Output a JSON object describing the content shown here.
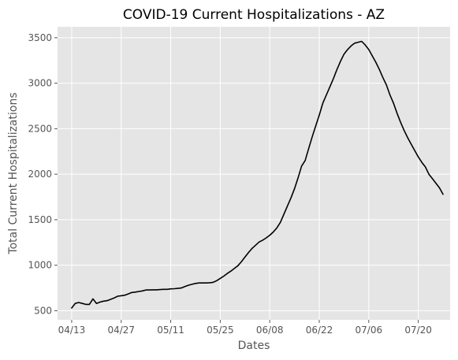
{
  "chart_data": {
    "type": "line",
    "title": "COVID-19 Current Hospitalizations - AZ",
    "xlabel": "Dates",
    "ylabel": "Total Current Hospitalizations",
    "x_ticks": [
      "04/13",
      "04/27",
      "05/11",
      "05/25",
      "06/08",
      "06/22",
      "07/06",
      "07/20"
    ],
    "y_ticks": [
      500,
      1000,
      1500,
      2000,
      2500,
      3000,
      3500
    ],
    "xlim": [
      -4,
      107
    ],
    "ylim": [
      400,
      3620
    ],
    "grid": true,
    "colors": {
      "plot_bg": "#e5e5e5",
      "grid": "#ffffff",
      "line": "#000000",
      "text": "#555555"
    },
    "series": [
      {
        "color": "#000000",
        "x": [
          0,
          1,
          2,
          3,
          4,
          5,
          6,
          7,
          8,
          9,
          10,
          11,
          12,
          13,
          14,
          15,
          16,
          17,
          18,
          19,
          20,
          21,
          22,
          23,
          24,
          25,
          26,
          27,
          28,
          29,
          30,
          31,
          32,
          33,
          34,
          35,
          36,
          37,
          38,
          39,
          40,
          41,
          42,
          43,
          44,
          45,
          46,
          47,
          48,
          49,
          50,
          51,
          52,
          53,
          54,
          55,
          56,
          57,
          58,
          59,
          60,
          61,
          62,
          63,
          64,
          65,
          66,
          67,
          68,
          69,
          70,
          71,
          72,
          73,
          74,
          75,
          76,
          77,
          78,
          79,
          80,
          81,
          82,
          83,
          84,
          85,
          86,
          87,
          88,
          89,
          90,
          91,
          92,
          93,
          94,
          95,
          96,
          97,
          98,
          99,
          100,
          101,
          102,
          103,
          104,
          105
        ],
        "y": [
          530,
          580,
          590,
          580,
          570,
          570,
          630,
          580,
          595,
          605,
          610,
          625,
          640,
          660,
          665,
          670,
          685,
          700,
          705,
          712,
          718,
          728,
          728,
          730,
          730,
          732,
          735,
          735,
          740,
          742,
          745,
          750,
          765,
          780,
          790,
          800,
          805,
          805,
          805,
          808,
          812,
          830,
          855,
          880,
          910,
          935,
          965,
          995,
          1040,
          1090,
          1140,
          1185,
          1220,
          1255,
          1275,
          1300,
          1330,
          1365,
          1410,
          1470,
          1560,
          1650,
          1740,
          1840,
          1960,
          2090,
          2150,
          2280,
          2410,
          2530,
          2650,
          2780,
          2870,
          2960,
          3050,
          3150,
          3240,
          3320,
          3370,
          3410,
          3440,
          3450,
          3460,
          3420,
          3370,
          3300,
          3230,
          3150,
          3060,
          2980,
          2870,
          2780,
          2670,
          2570,
          2480,
          2400,
          2330,
          2260,
          2190,
          2130,
          2080,
          2000,
          1950,
          1900,
          1850,
          1780
        ]
      }
    ]
  }
}
